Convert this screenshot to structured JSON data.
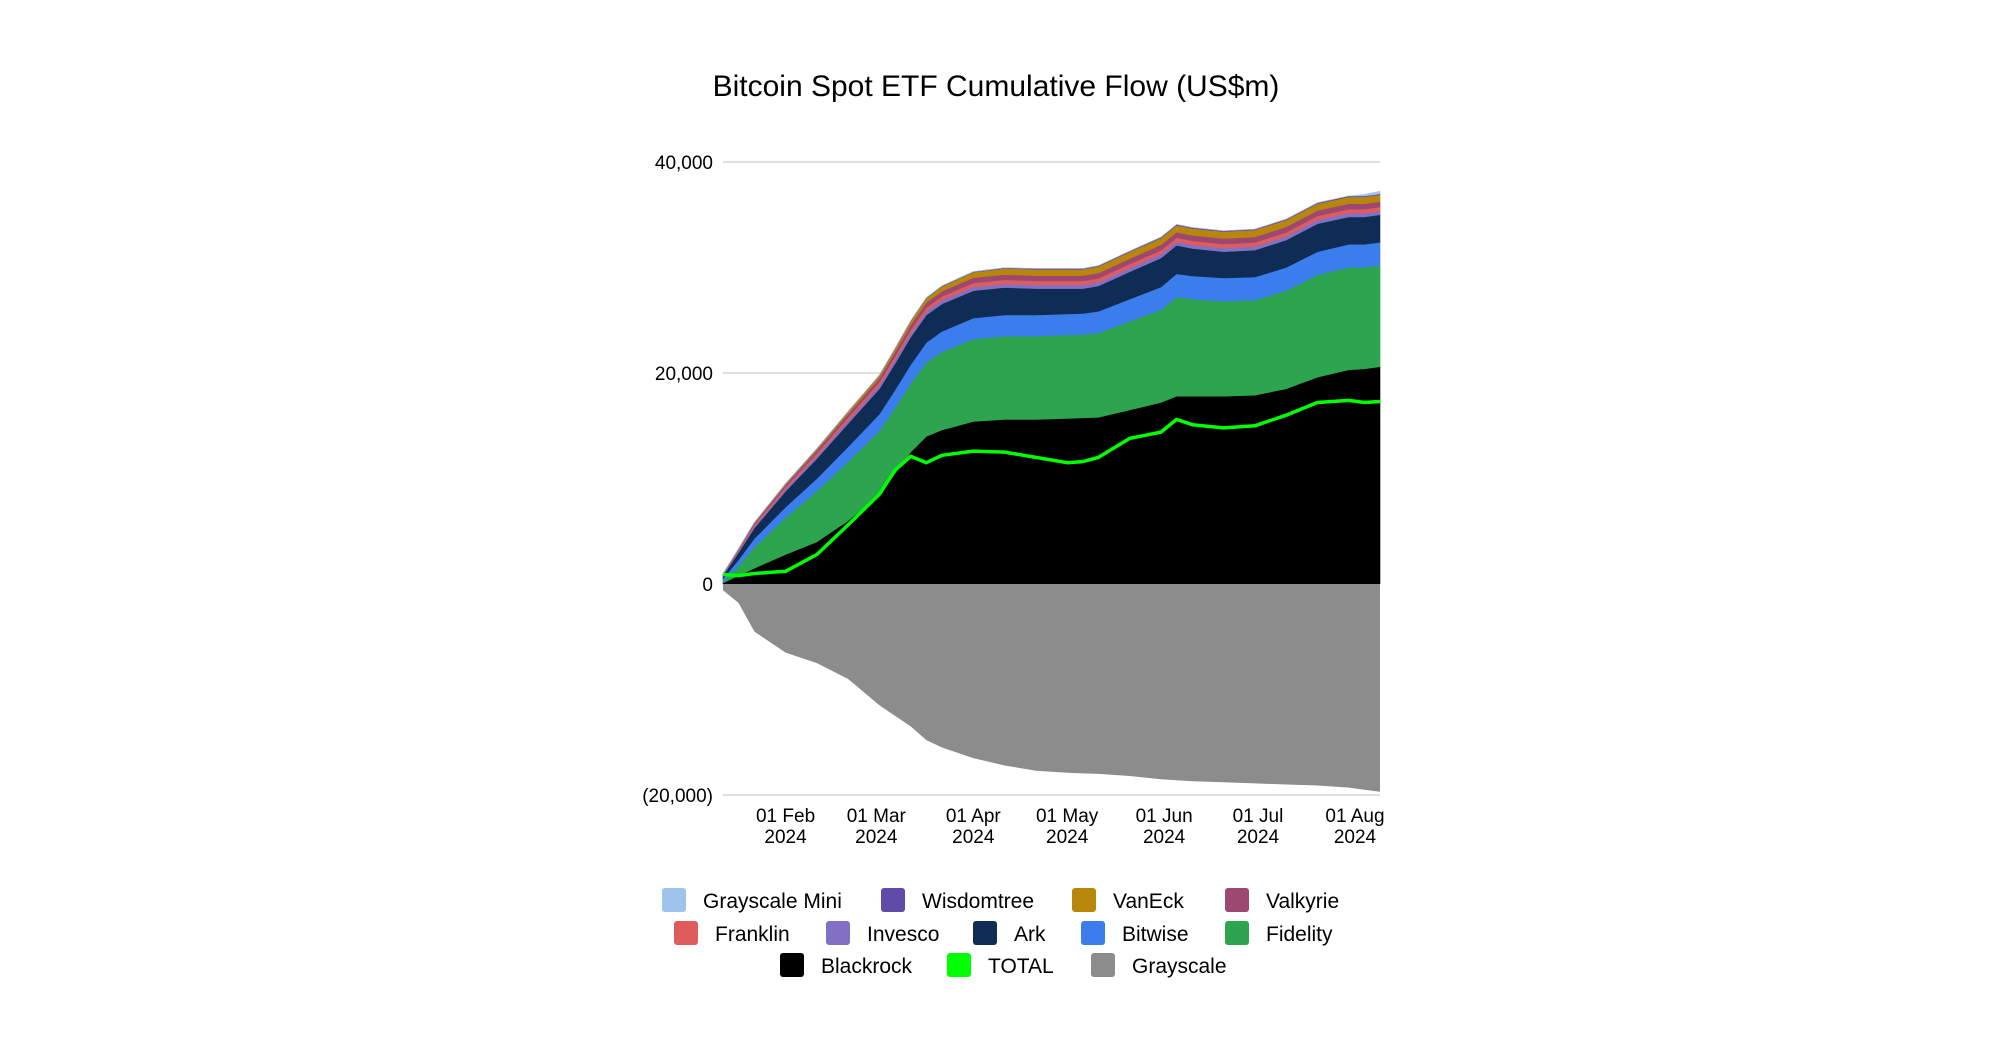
{
  "chart_data": {
    "type": "area",
    "title": "Bitcoin Spot ETF Cumulative Flow (US$m)",
    "xlabel": "",
    "ylabel": "",
    "ylim": [
      -20000,
      40000
    ],
    "yticks": [
      {
        "value": 40000,
        "label": "40,000"
      },
      {
        "value": 20000,
        "label": "20,000"
      },
      {
        "value": 0,
        "label": "0"
      },
      {
        "value": -20000,
        "label": "(20,000)"
      }
    ],
    "xlim": [
      0,
      210
    ],
    "xticks": [
      {
        "day": 20,
        "label": "01 Feb",
        "year": "2024"
      },
      {
        "day": 49,
        "label": "01 Mar",
        "year": "2024"
      },
      {
        "day": 80,
        "label": "01 Apr",
        "year": "2024"
      },
      {
        "day": 110,
        "label": "01 May",
        "year": "2024"
      },
      {
        "day": 141,
        "label": "01 Jun",
        "year": "2024"
      },
      {
        "day": 171,
        "label": "01 Jul",
        "year": "2024"
      },
      {
        "day": 202,
        "label": "01 Aug",
        "year": "2024"
      }
    ],
    "x_unit": "days since 11 Jan 2024",
    "x": [
      0,
      5,
      10,
      20,
      30,
      40,
      50,
      55,
      60,
      65,
      70,
      80,
      90,
      100,
      110,
      115,
      120,
      130,
      140,
      145,
      150,
      160,
      170,
      180,
      190,
      200,
      205,
      210
    ],
    "series": [
      {
        "name": "Blackrock",
        "color": "#000000",
        "values": [
          100,
          800,
          1500,
          2800,
          4000,
          6000,
          8500,
          10500,
          12500,
          14000,
          14600,
          15400,
          15600,
          15600,
          15700,
          15750,
          15800,
          16500,
          17200,
          17800,
          17800,
          17800,
          17900,
          18500,
          19600,
          20300,
          20400,
          20600
        ]
      },
      {
        "name": "Fidelity",
        "color": "#2da44e",
        "values": [
          100,
          900,
          2000,
          3500,
          4800,
          5600,
          6000,
          6200,
          6500,
          7000,
          7400,
          7800,
          7900,
          7900,
          7900,
          7900,
          8000,
          8400,
          8800,
          9400,
          9200,
          9000,
          9000,
          9300,
          9700,
          9700,
          9600,
          9600
        ]
      },
      {
        "name": "Bitwise",
        "color": "#3b7ded",
        "values": [
          300,
          600,
          800,
          1000,
          1200,
          1400,
          1600,
          1700,
          1800,
          1900,
          1950,
          2000,
          2000,
          2000,
          2000,
          2000,
          2050,
          2100,
          2150,
          2200,
          2200,
          2200,
          2200,
          2200,
          2200,
          2200,
          2200,
          2200
        ]
      },
      {
        "name": "Ark",
        "color": "#0f2c55",
        "values": [
          300,
          700,
          1000,
          1500,
          1900,
          2200,
          2400,
          2500,
          2600,
          2600,
          2600,
          2600,
          2600,
          2500,
          2400,
          2350,
          2400,
          2600,
          2750,
          2700,
          2600,
          2500,
          2550,
          2600,
          2650,
          2600,
          2600,
          2600
        ]
      },
      {
        "name": "Invesco",
        "color": "#8071c4",
        "values": [
          50,
          100,
          150,
          200,
          250,
          300,
          320,
          340,
          350,
          350,
          350,
          350,
          350,
          350,
          350,
          350,
          350,
          350,
          350,
          350,
          350,
          350,
          350,
          350,
          350,
          350,
          350,
          350
        ]
      },
      {
        "name": "Franklin",
        "color": "#e05c5c",
        "values": [
          50,
          100,
          150,
          200,
          250,
          300,
          320,
          340,
          350,
          360,
          370,
          380,
          380,
          380,
          380,
          380,
          380,
          380,
          380,
          380,
          380,
          380,
          380,
          380,
          380,
          380,
          380,
          380
        ]
      },
      {
        "name": "Valkyrie",
        "color": "#9d4870",
        "values": [
          50,
          100,
          150,
          200,
          260,
          320,
          380,
          420,
          460,
          480,
          490,
          500,
          500,
          500,
          500,
          500,
          500,
          510,
          520,
          520,
          520,
          520,
          520,
          520,
          520,
          520,
          520,
          520
        ]
      },
      {
        "name": "VanEck",
        "color": "#b8860b",
        "values": [
          20,
          40,
          60,
          100,
          150,
          200,
          250,
          300,
          350,
          400,
          450,
          520,
          580,
          600,
          600,
          600,
          620,
          640,
          650,
          650,
          650,
          650,
          650,
          650,
          650,
          650,
          650,
          650
        ]
      },
      {
        "name": "Wisdomtree",
        "color": "#5f4ba8",
        "values": [
          0,
          5,
          10,
          15,
          20,
          25,
          30,
          35,
          40,
          45,
          50,
          55,
          60,
          65,
          70,
          70,
          70,
          75,
          80,
          80,
          80,
          80,
          80,
          80,
          80,
          80,
          80,
          80
        ]
      },
      {
        "name": "Grayscale Mini",
        "color": "#9ec3ec",
        "values": [
          0,
          0,
          0,
          0,
          0,
          0,
          0,
          0,
          0,
          0,
          0,
          0,
          0,
          0,
          0,
          0,
          0,
          0,
          0,
          0,
          0,
          0,
          0,
          0,
          0,
          0,
          150,
          250
        ]
      },
      {
        "name": "Grayscale",
        "color": "#8c8c8c",
        "values": [
          -600,
          -1800,
          -4500,
          -6500,
          -7500,
          -9000,
          -11500,
          -12500,
          -13500,
          -14800,
          -15500,
          -16500,
          -17200,
          -17700,
          -17900,
          -17950,
          -18000,
          -18200,
          -18500,
          -18600,
          -18700,
          -18800,
          -18900,
          -19000,
          -19100,
          -19300,
          -19500,
          -19700
        ]
      },
      {
        "name": "TOTAL",
        "color": "#00ff00",
        "kind": "line",
        "values": [
          900,
          800,
          1000,
          1200,
          2800,
          5600,
          8500,
          10800,
          12100,
          11500,
          12200,
          12600,
          12500,
          12000,
          11500,
          11600,
          12000,
          13800,
          14400,
          15600,
          15100,
          14800,
          15000,
          16000,
          17200,
          17400,
          17200,
          17300
        ]
      }
    ],
    "stack_order_bottom_to_top": [
      "Blackrock",
      "Fidelity",
      "Bitwise",
      "Ark",
      "Invesco",
      "Franklin",
      "Valkyrie",
      "VanEck",
      "Wisdomtree",
      "Grayscale Mini"
    ],
    "legend": {
      "placement": "bottom",
      "rows": [
        [
          "Grayscale Mini",
          "Wisdomtree",
          "VanEck",
          "Valkyrie"
        ],
        [
          "Franklin",
          "Invesco",
          "Ark",
          "Bitwise",
          "Fidelity"
        ],
        [
          "Blackrock",
          "TOTAL",
          "Grayscale"
        ]
      ]
    },
    "grid": true
  }
}
